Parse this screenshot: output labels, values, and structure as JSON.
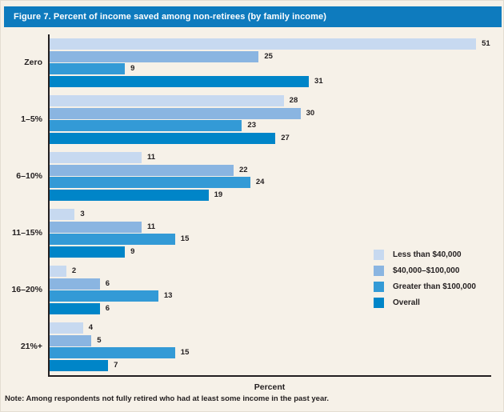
{
  "figure": {
    "title": "Figure 7. Percent of income saved among non-retirees (by family income)",
    "title_bar_color": "#0e7bbe",
    "background_color": "#f6f1e8",
    "note": "Note: Among respondents not fully retired who had at least some income in the past year."
  },
  "chart_data": {
    "type": "bar",
    "orientation": "horizontal",
    "title": "Percent of income saved among non-retirees (by family income)",
    "categories": [
      "Zero",
      "1–5%",
      "6–10%",
      "11–15%",
      "16–20%",
      "21%+"
    ],
    "series": [
      {
        "name": "Less than $40,000",
        "color": "#c7d9f0",
        "values": [
          51,
          28,
          11,
          3,
          2,
          4
        ]
      },
      {
        "name": "$40,000–$100,000",
        "color": "#8ab5e1",
        "values": [
          25,
          30,
          22,
          11,
          6,
          5
        ]
      },
      {
        "name": "Greater than $100,000",
        "color": "#339ad6",
        "values": [
          9,
          23,
          24,
          15,
          13,
          15
        ]
      },
      {
        "name": "Overall",
        "color": "#0085c8",
        "values": [
          31,
          27,
          19,
          9,
          6,
          7
        ]
      }
    ],
    "xlabel": "Percent",
    "xlim": [
      0,
      53
    ],
    "grid": false,
    "value_labels": true,
    "legend_position": "right-middle"
  }
}
